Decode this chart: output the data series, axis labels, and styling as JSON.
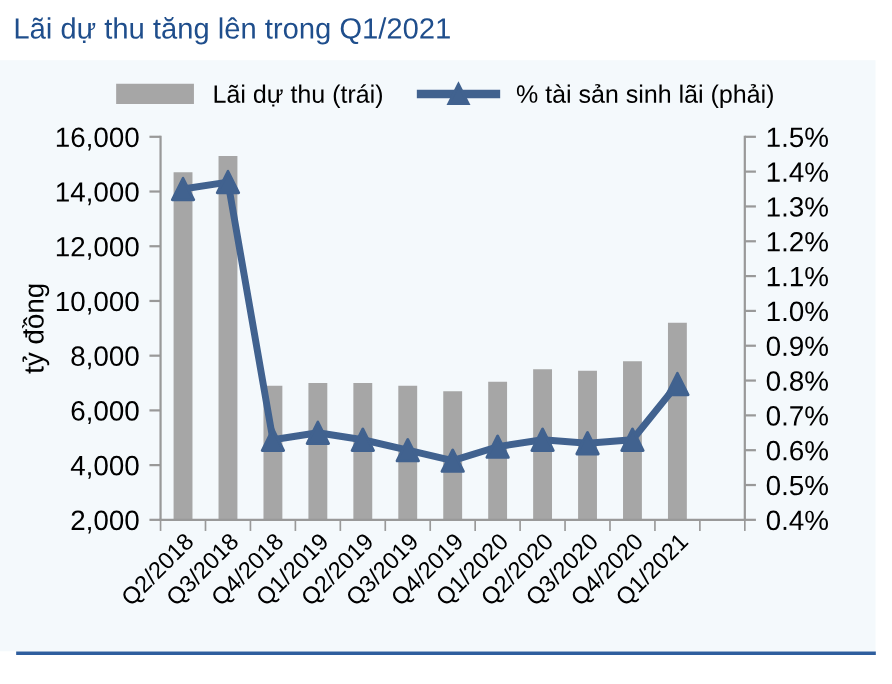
{
  "chart_data": {
    "type": "bar",
    "title": "Lãi dự thu tăng lên trong Q1/2021",
    "ylabel": "tỷ đồng",
    "categories": [
      "Q2/2018",
      "Q3/2018",
      "Q4/2018",
      "Q1/2019",
      "Q2/2019",
      "Q3/2019",
      "Q4/2019",
      "Q1/2020",
      "Q2/2020",
      "Q3/2020",
      "Q4/2020",
      "Q1/2021",
      null
    ],
    "series": [
      {
        "name": "Lãi dự thu (trái)",
        "type": "bar",
        "color": "#a6a6a6",
        "values": [
          14700,
          15300,
          6900,
          7000,
          7000,
          6900,
          6700,
          7050,
          7500,
          7450,
          7800,
          9200,
          null
        ]
      },
      {
        "name": "% tài sản sinh lãi (phải)",
        "type": "line",
        "axis": "y2",
        "color": "#41628f",
        "marker": "triangle",
        "values": [
          1.35,
          1.37,
          0.63,
          0.65,
          0.63,
          0.6,
          0.57,
          0.61,
          0.63,
          0.62,
          0.63,
          0.79,
          null
        ]
      }
    ],
    "ylim": [
      2000,
      16000
    ],
    "yticks": [
      {
        "value": 2000,
        "label": "2,000"
      },
      {
        "value": 4000,
        "label": "4,000"
      },
      {
        "value": 6000,
        "label": "6,000"
      },
      {
        "value": 8000,
        "label": "8,000"
      },
      {
        "value": 10000,
        "label": "10,000"
      },
      {
        "value": 12000,
        "label": "12,000"
      },
      {
        "value": 14000,
        "label": "14,000"
      },
      {
        "value": 16000,
        "label": "16,000"
      }
    ],
    "y2lim": [
      0.4,
      1.5
    ],
    "y2ticks": [
      {
        "value": 0.4,
        "label": "0.4%"
      },
      {
        "value": 0.5,
        "label": "0.5%"
      },
      {
        "value": 0.6,
        "label": "0.6%"
      },
      {
        "value": 0.7,
        "label": "0.7%"
      },
      {
        "value": 0.8,
        "label": "0.8%"
      },
      {
        "value": 0.9,
        "label": "0.9%"
      },
      {
        "value": 1.0,
        "label": "1.0%"
      },
      {
        "value": 1.1,
        "label": "1.1%"
      },
      {
        "value": 1.2,
        "label": "1.2%"
      },
      {
        "value": 1.3,
        "label": "1.3%"
      },
      {
        "value": 1.4,
        "label": "1.4%"
      },
      {
        "value": 1.5,
        "label": "1.5%"
      }
    ],
    "grid": false,
    "legend": "top"
  }
}
